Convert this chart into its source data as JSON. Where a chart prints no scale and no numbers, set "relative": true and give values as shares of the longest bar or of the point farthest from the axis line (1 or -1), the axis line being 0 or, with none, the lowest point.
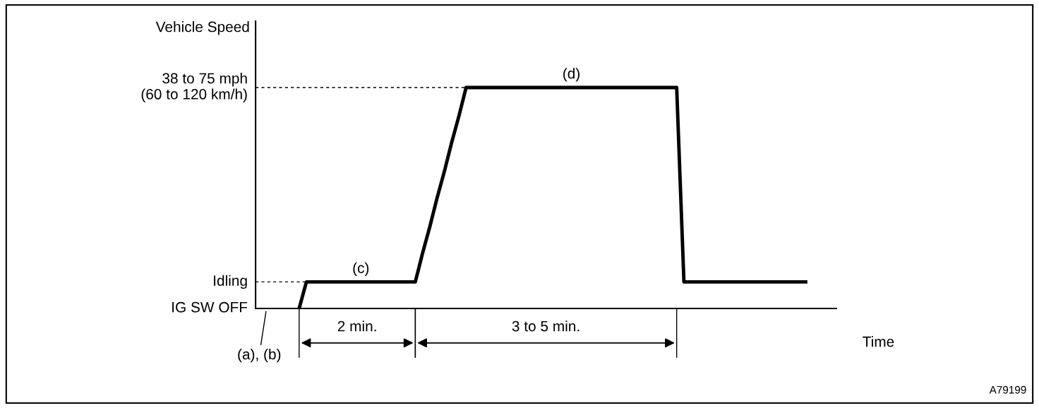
{
  "chart_data": {
    "type": "line",
    "relative": true,
    "ylabel": "Vehicle Speed",
    "xlabel": "Time",
    "line_style": "solid",
    "categories": [
      null,
      null,
      null,
      null,
      null,
      null,
      null,
      null,
      null,
      null,
      null,
      null,
      null,
      null,
      null,
      null,
      null,
      null,
      null,
      null,
      null,
      null,
      null,
      null,
      null,
      null,
      null,
      null,
      null,
      null,
      null,
      null,
      null,
      null,
      null,
      null,
      null,
      null,
      null,
      null,
      null,
      null,
      null,
      null,
      null,
      null,
      null,
      null,
      null,
      null,
      null,
      null,
      null,
      null,
      null,
      null,
      null,
      null,
      null,
      null,
      null,
      null,
      null,
      null,
      null,
      null,
      null,
      null,
      null,
      null,
      null,
      null,
      null,
      null,
      null,
      null,
      null,
      null,
      null,
      null,
      null
    ],
    "series": [
      {
        "color": "#000000",
        "values": [
          null,
          null,
          null,
          null,
          null,
          null,
          0,
          0.12,
          0.12,
          0.12,
          0.12,
          0.12,
          0.12,
          0.12,
          0.12,
          0.12,
          0.12,
          0.12,
          0.12,
          0.12,
          0.12,
          0.12,
          0.12,
          0.25,
          0.37,
          0.5,
          0.62,
          0.75,
          0.87,
          1,
          1,
          1,
          1,
          1,
          1,
          1,
          1,
          1,
          1,
          1,
          1,
          1,
          1,
          1,
          1,
          1,
          1,
          1,
          1,
          1,
          1,
          1,
          1,
          1,
          1,
          1,
          1,
          1,
          1,
          0.12,
          0.12,
          0.12,
          0.12,
          0.12,
          0.12,
          0.12,
          0.12,
          0.12,
          0.12,
          0.12,
          0.12,
          0.12,
          0.12,
          0.12,
          0.12,
          0.12,
          0.12,
          null,
          null,
          null,
          null
        ]
      }
    ],
    "ref_lines": [
      {
        "axis": "y",
        "value": 0,
        "label": "IG SW OFF",
        "line_style": "solid",
        "color": "#000000"
      },
      {
        "axis": "y",
        "value": 0.12,
        "label": "Idling",
        "line_style": "dashed",
        "color": "#000000"
      },
      {
        "axis": "y",
        "value": 1,
        "label": "38 to 75 mph\n(60 to 120 km/h)",
        "line_style": "dashed",
        "color": "#000000"
      }
    ],
    "annotations": [
      "(a), (b)",
      "(c)",
      "(d)",
      "2 min.",
      "3 to 5 min.",
      "A79199"
    ]
  }
}
